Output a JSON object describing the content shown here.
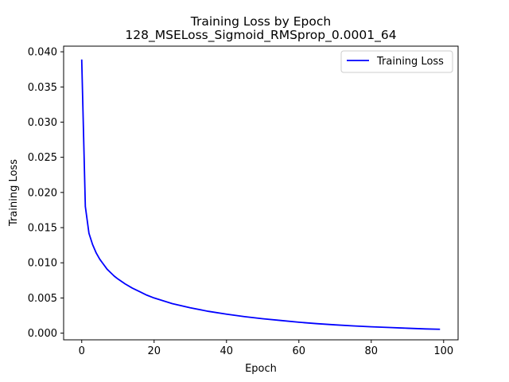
{
  "chart_data": {
    "type": "line",
    "title": "Training Loss by Epoch",
    "subtitle": "128_MSELoss_Sigmoid_RMSprop_0.0001_64",
    "xlabel": "Epoch",
    "ylabel": "Training Loss",
    "xlim": [
      -5,
      104
    ],
    "ylim": [
      -0.00095,
      0.0408
    ],
    "xticks": [
      0,
      20,
      40,
      60,
      80,
      100
    ],
    "xtick_labels": [
      "0",
      "20",
      "40",
      "60",
      "80",
      "100"
    ],
    "yticks": [
      0.0,
      0.005,
      0.01,
      0.015,
      0.02,
      0.025,
      0.03,
      0.035,
      0.04
    ],
    "ytick_labels": [
      "0.000",
      "0.005",
      "0.010",
      "0.015",
      "0.020",
      "0.025",
      "0.030",
      "0.035",
      "0.040"
    ],
    "grid": false,
    "legend_position": "top-right",
    "series": [
      {
        "name": "Training Loss",
        "color": "#0000ff",
        "x": [
          0,
          1,
          2,
          3,
          4,
          5,
          6,
          7,
          8,
          9,
          10,
          12,
          14,
          16,
          18,
          20,
          25,
          30,
          35,
          40,
          45,
          50,
          55,
          60,
          65,
          70,
          75,
          80,
          85,
          90,
          95,
          99
        ],
        "y": [
          0.0389,
          0.018,
          0.0142,
          0.0126,
          0.0114,
          0.0105,
          0.0098,
          0.0091,
          0.0086,
          0.0081,
          0.0077,
          0.007,
          0.0064,
          0.0059,
          0.0054,
          0.005,
          0.0042,
          0.0036,
          0.0031,
          0.0027,
          0.00235,
          0.00205,
          0.0018,
          0.00155,
          0.00135,
          0.00118,
          0.00103,
          0.0009,
          0.0008,
          0.0007,
          0.0006,
          0.00055
        ]
      }
    ]
  }
}
